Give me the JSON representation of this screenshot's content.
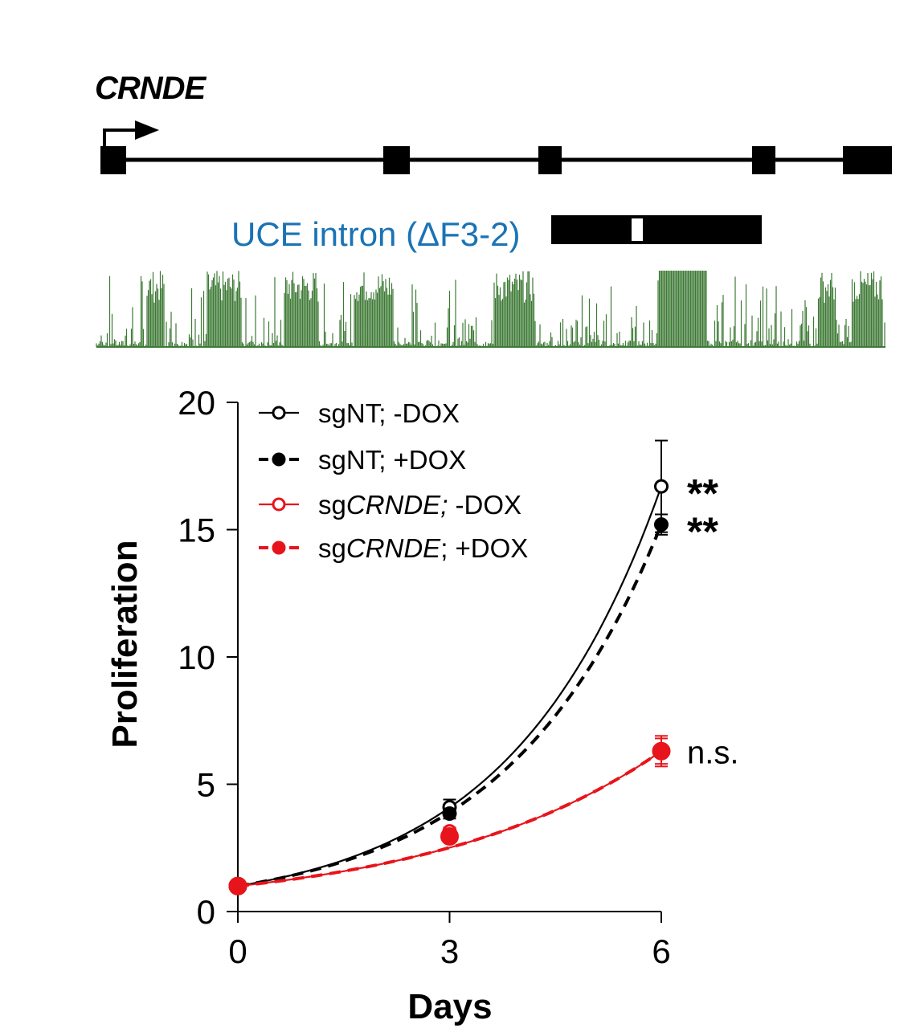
{
  "gene": {
    "name": "CRNDE",
    "uce_label": "UCE intron (ΔF3-2)"
  },
  "colors": {
    "black_series": "#000000",
    "red_series": "#e8141b",
    "uce_label": "#1a73b5",
    "conservation_track": "#3d7a35"
  },
  "chart_data": {
    "type": "line",
    "xlabel": "Days",
    "ylabel": "Proliferation",
    "x": [
      0,
      3,
      6
    ],
    "xticks": [
      0,
      3,
      6
    ],
    "yticks": [
      0,
      5,
      10,
      15,
      20
    ],
    "ylim": [
      0,
      20
    ],
    "xlim": [
      0,
      6
    ],
    "grid": false,
    "legend_position": "top-left",
    "series": [
      {
        "name": "sgNT; -DOX",
        "name_prefix": "sg",
        "name_gene": "NT",
        "name_suffix": "; -DOX",
        "italic_gene": false,
        "color": "#000000",
        "marker": "open-circle",
        "line": "solid",
        "values": [
          1.0,
          4.1,
          16.7
        ],
        "error": [
          0,
          0.3,
          1.8
        ],
        "annotation": "**"
      },
      {
        "name": "sgNT; +DOX",
        "name_prefix": "sg",
        "name_gene": "NT",
        "name_suffix": "; +DOX",
        "italic_gene": false,
        "color": "#000000",
        "marker": "filled-circle",
        "line": "dashed",
        "values": [
          1.0,
          3.85,
          15.2
        ],
        "error": [
          0,
          0.2,
          0.4
        ],
        "annotation": "**"
      },
      {
        "name": "sgCRNDE; -DOX",
        "name_prefix": "sg",
        "name_gene": "CRNDE;",
        "name_suffix": " -DOX",
        "italic_gene": true,
        "color": "#e8141b",
        "marker": "open-circle",
        "line": "solid",
        "values": [
          1.0,
          3.15,
          6.3
        ],
        "error": [
          0,
          0.15,
          0.6
        ],
        "annotation": ""
      },
      {
        "name": "sgCRNDE; +DOX",
        "name_prefix": "sg",
        "name_gene": "CRNDE",
        "name_suffix": "; +DOX",
        "italic_gene": true,
        "color": "#e8141b",
        "marker": "filled-circle",
        "line": "dashed",
        "values": [
          1.0,
          2.95,
          6.3
        ],
        "error": [
          0,
          0.1,
          0.5
        ],
        "annotation": "n.s."
      }
    ]
  }
}
